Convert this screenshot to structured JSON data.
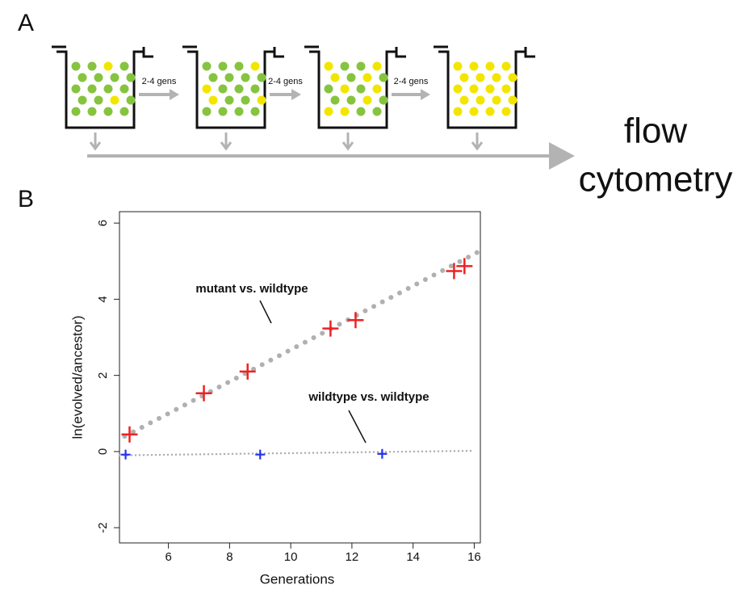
{
  "panel_labels": [
    "A",
    "B"
  ],
  "diagram": {
    "steps": [
      "2-4 gens",
      "2-4 gens",
      "2-4 gens"
    ],
    "destination_lines": [
      "flow",
      "cytometry"
    ]
  },
  "chart_data": {
    "type": "scatter",
    "xlabel": "Generations",
    "ylabel": "ln(evolved/ancestor)",
    "xlim": [
      4.4,
      16.2
    ],
    "ylim": [
      -2.4,
      6.3
    ],
    "xticks": [
      6,
      8,
      10,
      12,
      14,
      16
    ],
    "yticks": [
      -2,
      0,
      2,
      4,
      6
    ],
    "series": [
      {
        "name": "mutant vs. wildtype",
        "color": "#ee2222",
        "x": [
          4.73,
          7.16,
          8.59,
          11.3,
          12.12,
          15.34,
          15.68
        ],
        "values": [
          0.45,
          1.53,
          2.1,
          3.23,
          3.45,
          4.74,
          4.87
        ],
        "fit": {
          "color": "#b0b0b0",
          "x": [
            4.57,
            16.1
          ],
          "values": [
            0.4,
            5.23
          ]
        }
      },
      {
        "name": "wildtype vs. wildtype",
        "color": "#2233ee",
        "x": [
          4.6,
          9.0,
          12.99
        ],
        "values": [
          -0.08,
          -0.08,
          -0.06
        ],
        "fit": {
          "color": "#b0b0b0",
          "x": [
            4.4,
            16.0
          ],
          "values": [
            -0.1,
            0.02
          ]
        }
      }
    ]
  }
}
